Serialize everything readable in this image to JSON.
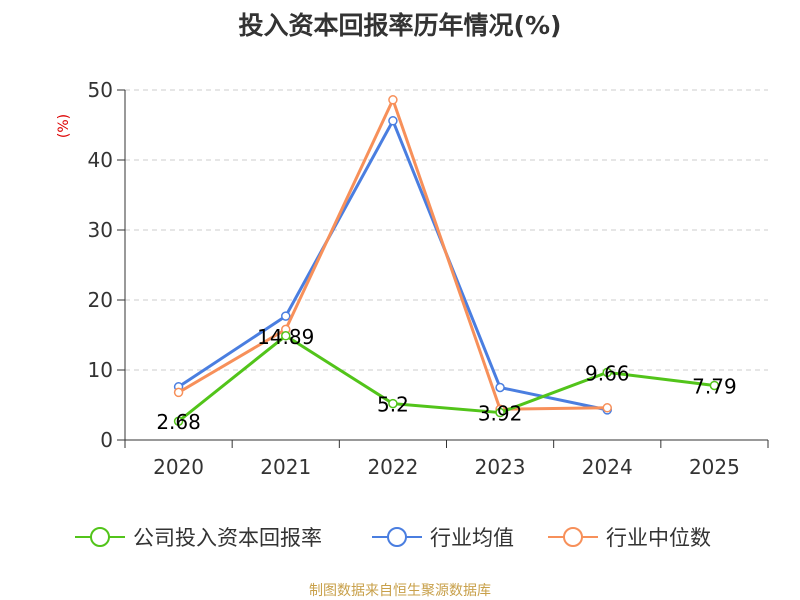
{
  "chart_data": {
    "type": "line",
    "title": "投入资本回报率历年情况(%)",
    "ylabel": "(%)",
    "xlabel": "",
    "categories": [
      "2020",
      "2021",
      "2022",
      "2023",
      "2024",
      "2025"
    ],
    "ylim": [
      0,
      50
    ],
    "yticks": [
      0,
      10,
      20,
      30,
      40,
      50
    ],
    "grid": true,
    "legend_position": "bottom",
    "series": [
      {
        "name": "公司投入资本回报率",
        "color": "#52c41a",
        "values": [
          2.68,
          14.89,
          5.2,
          3.92,
          9.66,
          7.79
        ],
        "labels": [
          "2.68",
          "14.89",
          "5.2",
          "3.92",
          "9.66",
          "7.79"
        ]
      },
      {
        "name": "行业均值",
        "color": "#4a7ee0",
        "values": [
          7.6,
          17.7,
          45.6,
          7.5,
          4.3,
          null
        ]
      },
      {
        "name": "行业中位数",
        "color": "#f7905a",
        "values": [
          6.8,
          15.8,
          48.6,
          4.4,
          4.6,
          null
        ]
      }
    ]
  },
  "source": "制图数据来自恒生聚源数据库"
}
